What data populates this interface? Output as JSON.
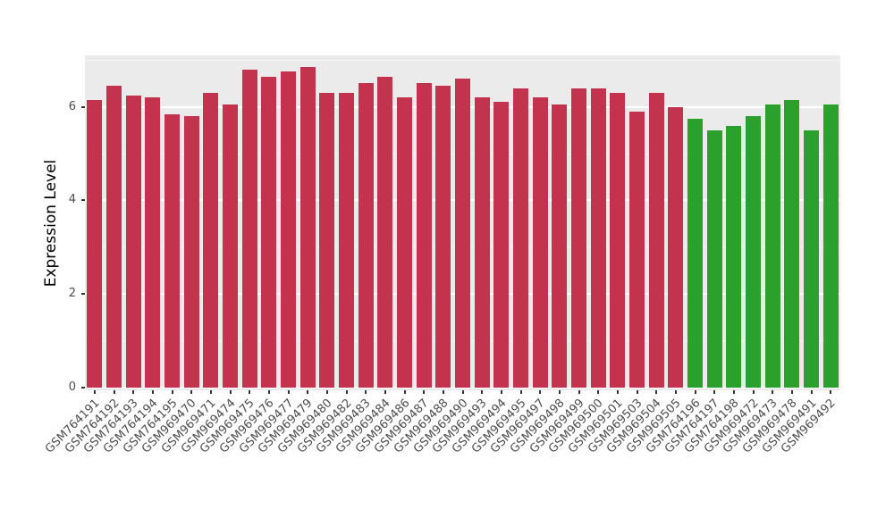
{
  "chart_data": {
    "type": "bar",
    "title": "",
    "xlabel": "",
    "ylabel": "Expression Level",
    "ylim": [
      0,
      7.1
    ],
    "yticks": [
      0,
      2,
      4,
      6
    ],
    "grid": true,
    "legend_position": "none",
    "categories": [
      "GSM764191",
      "GSM764192",
      "GSM764193",
      "GSM764194",
      "GSM764195",
      "GSM969470",
      "GSM969471",
      "GSM969474",
      "GSM969475",
      "GSM969476",
      "GSM969477",
      "GSM969479",
      "GSM969480",
      "GSM969482",
      "GSM969483",
      "GSM969484",
      "GSM969486",
      "GSM969487",
      "GSM969488",
      "GSM969490",
      "GSM969493",
      "GSM969494",
      "GSM969495",
      "GSM969497",
      "GSM969498",
      "GSM969499",
      "GSM969500",
      "GSM969501",
      "GSM969503",
      "GSM969504",
      "GSM969505",
      "GSM764196",
      "GSM764197",
      "GSM764198",
      "GSM969472",
      "GSM969473",
      "GSM969478",
      "GSM969491",
      "GSM969492"
    ],
    "values": [
      6.15,
      6.45,
      6.25,
      6.2,
      5.85,
      5.8,
      6.3,
      6.05,
      6.8,
      6.65,
      6.75,
      6.85,
      6.3,
      6.3,
      6.5,
      6.65,
      6.2,
      6.5,
      6.45,
      6.6,
      6.2,
      6.1,
      6.4,
      6.2,
      6.05,
      6.4,
      6.4,
      6.3,
      5.9,
      6.3,
      6.0,
      5.75,
      5.5,
      5.6,
      5.8,
      6.05,
      6.15,
      5.5,
      6.05
    ],
    "bar_group": [
      "red",
      "red",
      "red",
      "red",
      "red",
      "red",
      "red",
      "red",
      "red",
      "red",
      "red",
      "red",
      "red",
      "red",
      "red",
      "red",
      "red",
      "red",
      "red",
      "red",
      "red",
      "red",
      "red",
      "red",
      "red",
      "red",
      "red",
      "red",
      "red",
      "red",
      "red",
      "green",
      "green",
      "green",
      "green",
      "green",
      "green",
      "green",
      "green"
    ],
    "group_colors": {
      "red": "#C4334D",
      "green": "#2CA02C"
    }
  },
  "colors": {
    "panel_background": "#EBEBEB",
    "grid_major": "#FFFFFF",
    "grid_minor": "#F5F5F5",
    "axis_text": "#4D4D4D",
    "axis_title": "#000000",
    "figure_background": "#FFFFFF"
  }
}
